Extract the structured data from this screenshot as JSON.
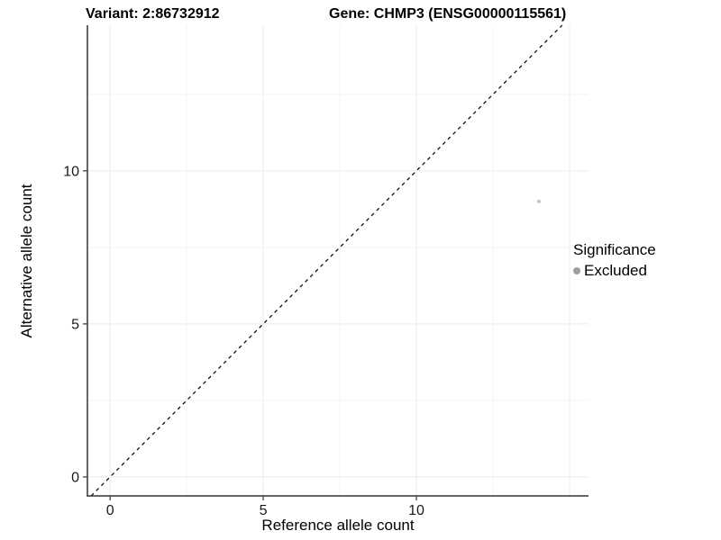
{
  "titles": {
    "variant": "Variant: 2:86732912",
    "gene": "Gene: CHMP3 (ENSG00000115561)"
  },
  "chart_data": {
    "type": "scatter",
    "title": "Variant: 2:86732912  /  Gene: CHMP3 (ENSG00000115561)",
    "xlabel": "Reference allele count",
    "ylabel": "Alternative allele count",
    "xlim": [
      -0.74,
      15.62
    ],
    "ylim": [
      -0.62,
      14.76
    ],
    "x_ticks": [
      0,
      5,
      10
    ],
    "y_ticks": [
      0,
      5,
      10
    ],
    "x_gridlines_major": [
      0,
      5,
      10,
      15
    ],
    "y_gridlines_major": [
      0,
      5,
      10
    ],
    "x_gridlines_minor": [
      2.5,
      7.5,
      12.5
    ],
    "y_gridlines_minor": [
      2.5,
      7.5,
      12.5
    ],
    "grid": "on",
    "legend_position": "right",
    "identity_line": {
      "slope": 1,
      "intercept": 0,
      "style": "dashed",
      "color": "#000000"
    },
    "series": [
      {
        "name": "Excluded",
        "color": "#c3c3c3",
        "marker": "circle",
        "points": [
          {
            "x": 14,
            "y": 9
          }
        ]
      }
    ],
    "colors": {
      "background": "#ffffff",
      "grid_major": "#ebebeb",
      "grid_minor": "#f4f4f4",
      "axis_line": "#333333",
      "tick": "#333333",
      "tick_label": "#1a1a1a",
      "point": "#c3c3c3"
    }
  },
  "legend": {
    "title": "Significance",
    "items": [
      {
        "label": "Excluded",
        "color": "#9e9e9e",
        "marker": "circle"
      }
    ]
  }
}
